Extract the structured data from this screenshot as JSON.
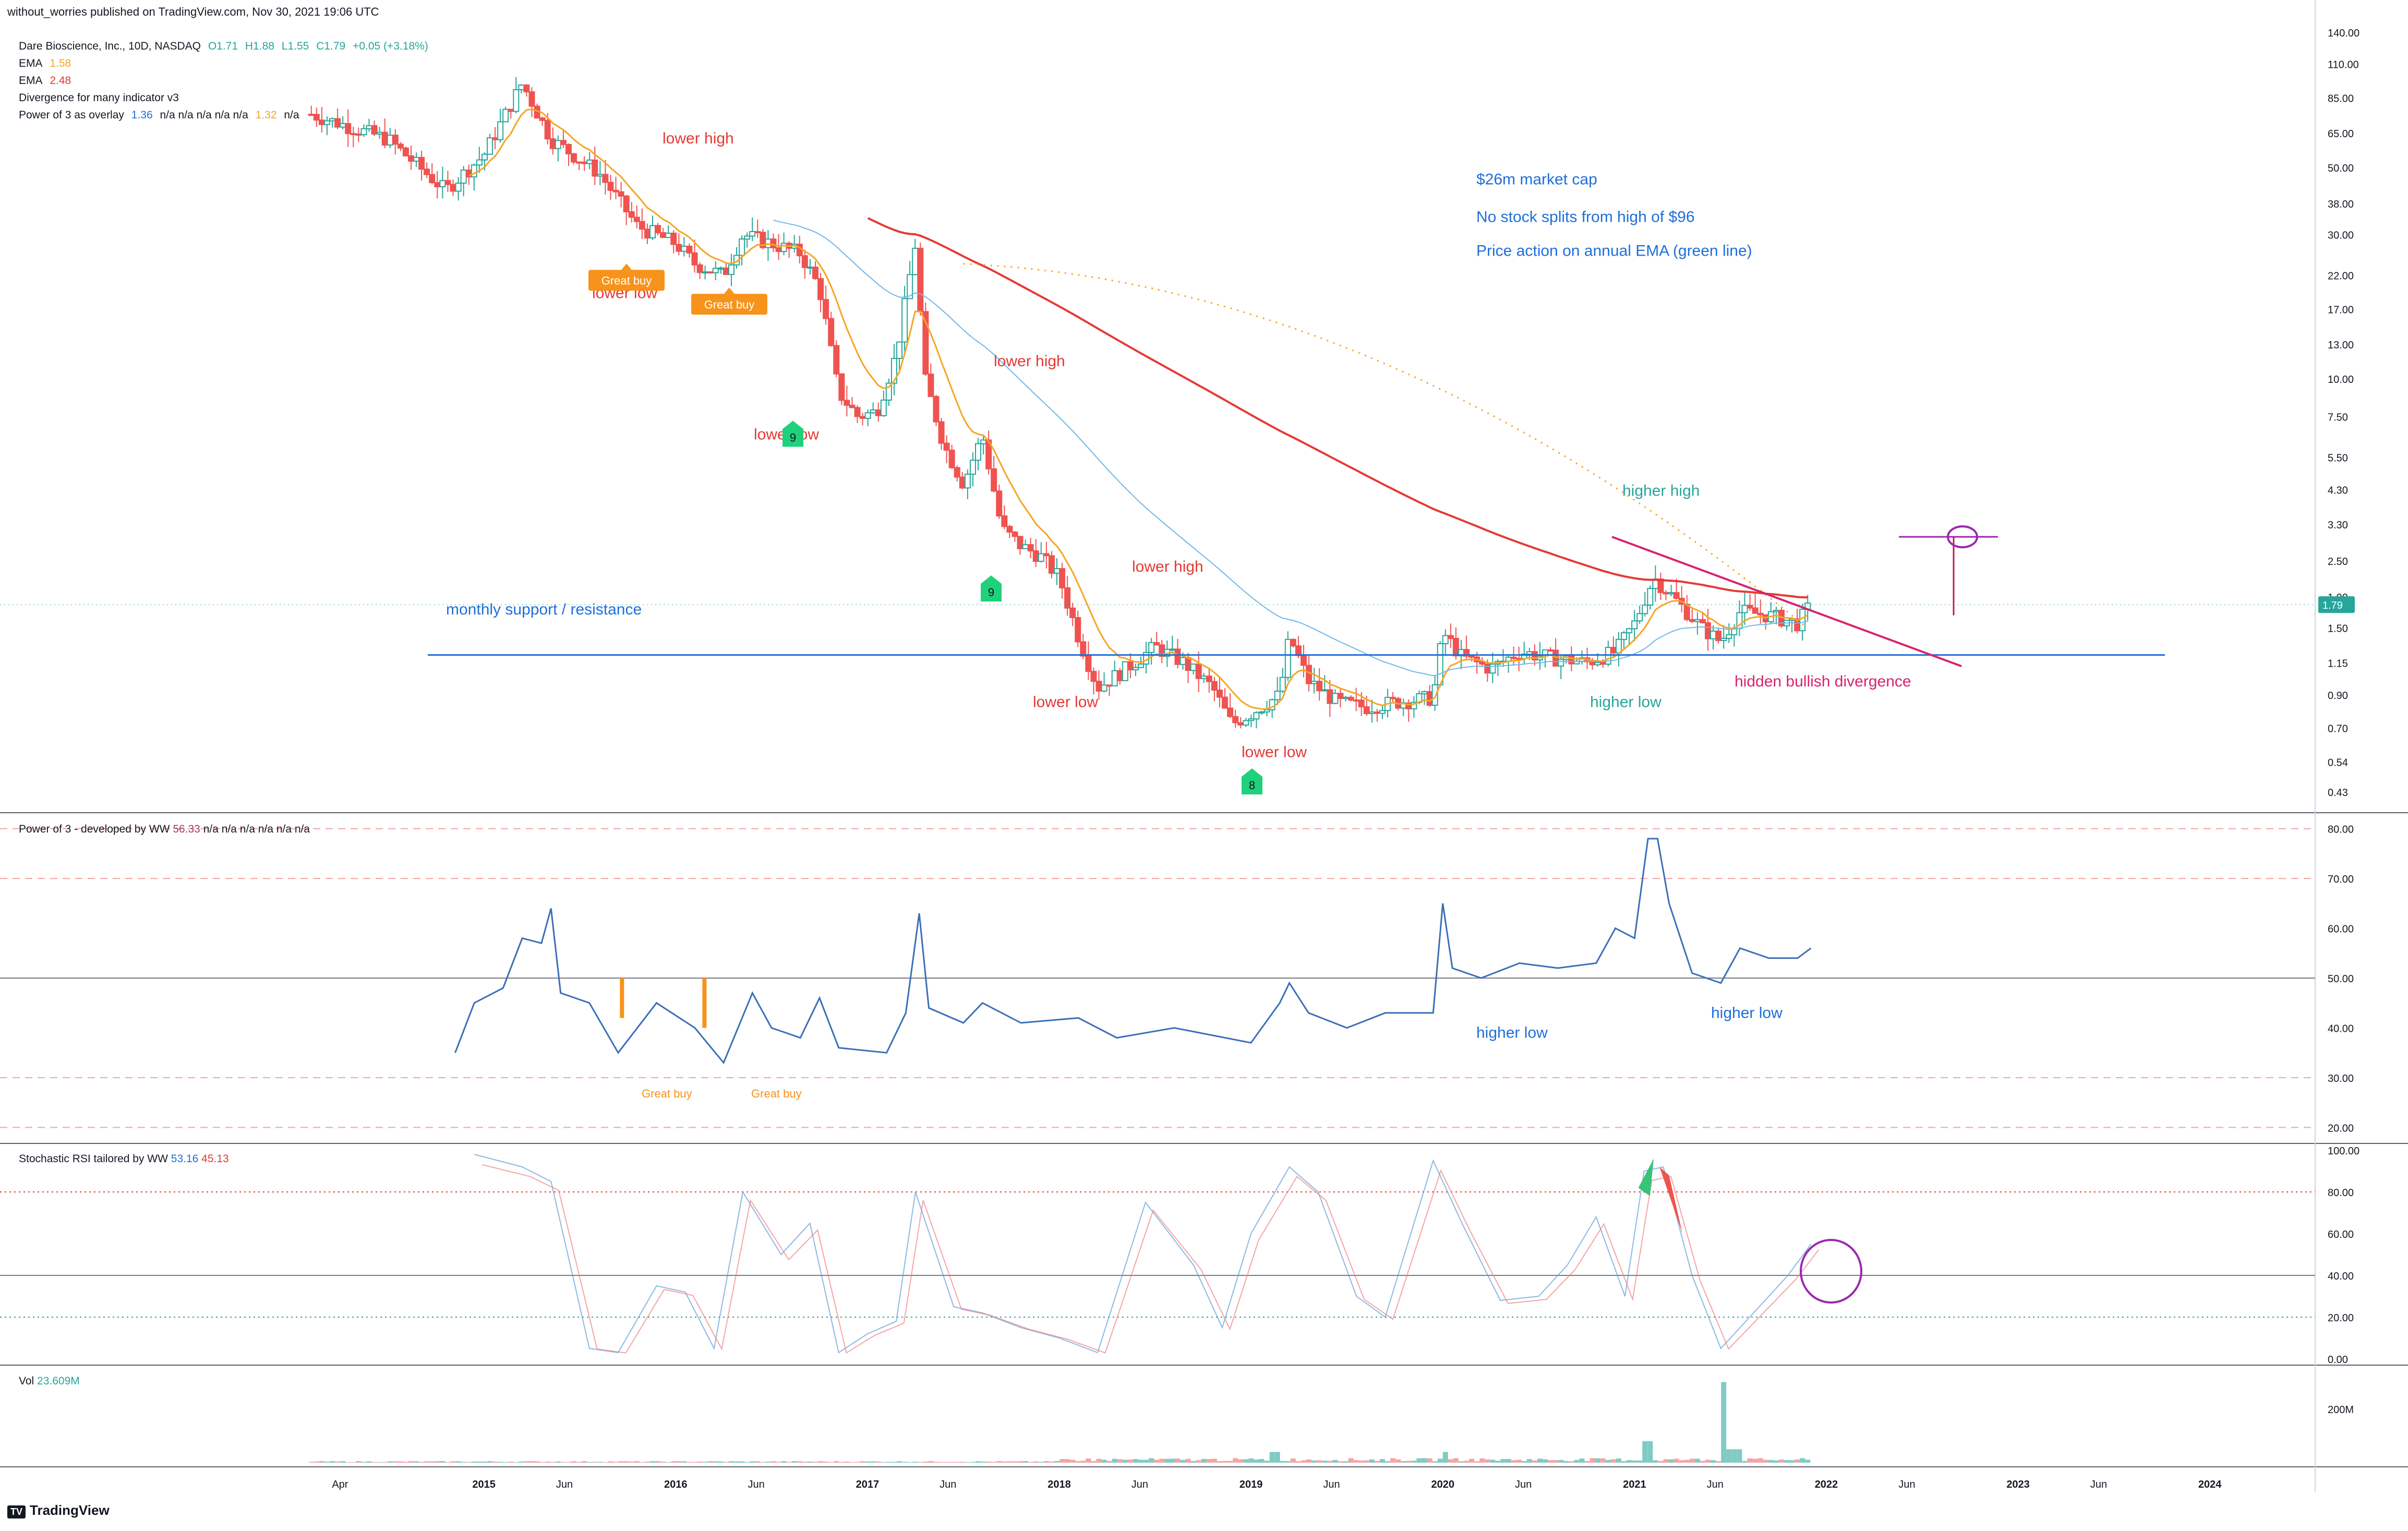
{
  "header": {
    "publisher_line": "without_worries published on TradingView.com, Nov 30, 2021 19:06 UTC"
  },
  "legend": {
    "symbol": "Dare Bioscience, Inc., 10D, NASDAQ",
    "o": "O1.71",
    "h": "H1.88",
    "l": "L1.55",
    "c": "C1.79",
    "chg": "+0.05 (+3.18%)",
    "ema1_label": "EMA",
    "ema1_value": "1.58",
    "ema2_label": "EMA",
    "ema2_value": "2.48",
    "divergence_label": "Divergence for many indicator v3",
    "power_overlay_label": "Power of 3 as overlay",
    "power_overlay_v1": "1.36",
    "power_overlay_na": "n/a  n/a  n/a  n/a  n/a",
    "power_overlay_v2": "1.32",
    "power_overlay_na2": "n/a"
  },
  "panes": {
    "power3_title": "Power of 3 - developed by WW",
    "power3_value": "56.33",
    "power3_na": "n/a  n/a  n/a  n/a  n/a  n/a",
    "stoch_title": "Stochastic RSI tailored by WW",
    "stoch_k": "53.16",
    "stoch_d": "45.13",
    "vol_title": "Vol",
    "vol_value": "23.609M"
  },
  "footer": {
    "brand": "TradingView",
    "mark": "TV"
  },
  "colors": {
    "up": "#26a69a",
    "down": "#ef5350",
    "ema_fast": "#f5a623",
    "ema_slow": "#e53935",
    "ema_annual": "#6fb8e8",
    "support": "#1e6fd9",
    "annot_red": "#e53935",
    "annot_blue": "#1e6fd9",
    "annot_teal": "#26a69a",
    "annot_pink": "#d6246e",
    "orange_label": "#f7931a",
    "green_marker": "#1fd17a",
    "purple": "#9c27b0"
  },
  "chart_data": [
    {
      "type": "candlestick",
      "title": "Dare Bioscience, Inc., 10D, NASDAQ",
      "scale": "log",
      "x_tick_labels": [
        "Apr",
        "2015",
        "Jun",
        "2016",
        "Jun",
        "2017",
        "Jun",
        "2018",
        "Jun",
        "2019",
        "Jun",
        "2020",
        "Jun",
        "2021",
        "Jun",
        "2022",
        "Jun",
        "2023",
        "Jun",
        "2024"
      ],
      "y_tick_labels": [
        "140.00",
        "110.00",
        "85.00",
        "65.00",
        "50.00",
        "38.00",
        "30.00",
        "22.00",
        "17.00",
        "13.00",
        "10.00",
        "7.50",
        "5.50",
        "4.30",
        "3.30",
        "2.50",
        "1.90",
        "1.50",
        "1.15",
        "0.90",
        "0.70",
        "0.54",
        "0.43"
      ],
      "last_price_label": "1.79",
      "support_level": 1.22,
      "annotations": [
        {
          "text": "lower high",
          "color": "red"
        },
        {
          "text": "lower low",
          "color": "red"
        },
        {
          "text": "lower high",
          "color": "red"
        },
        {
          "text": "lower low",
          "color": "red"
        },
        {
          "text": "lower high",
          "color": "red"
        },
        {
          "text": "lower low",
          "color": "red"
        },
        {
          "text": "lower low",
          "color": "red"
        },
        {
          "text": "higher high",
          "color": "teal"
        },
        {
          "text": "higher low",
          "color": "teal"
        },
        {
          "text": "hidden bullish divergence",
          "color": "pink"
        },
        {
          "text": "monthly support / resistance",
          "color": "blue"
        },
        {
          "text": "$26m market cap",
          "color": "blue"
        },
        {
          "text": "No stock splits from high of $96",
          "color": "blue"
        },
        {
          "text": "Price action on annual EMA (green line)",
          "color": "blue"
        }
      ],
      "buy_labels": [
        "Great buy",
        "Great buy"
      ],
      "count_markers": [
        "9",
        "9",
        "8"
      ]
    },
    {
      "type": "line",
      "title": "Power of 3 - developed by WW",
      "y_tick_labels": [
        "80.00",
        "70.00",
        "60.00",
        "50.00",
        "40.00",
        "30.00",
        "20.00"
      ],
      "ylim": [
        17,
        83
      ],
      "annotations": [
        "Great buy",
        "Great buy",
        "higher low",
        "higher low"
      ]
    },
    {
      "type": "line",
      "title": "Stochastic RSI tailored by WW",
      "y_tick_labels": [
        "100.00",
        "80.00",
        "60.00",
        "40.00",
        "20.00",
        "0.00"
      ],
      "ylim": [
        0,
        100
      ],
      "series": [
        {
          "name": "53.16"
        },
        {
          "name": "45.13"
        }
      ]
    },
    {
      "type": "bar",
      "title": "Vol",
      "y_tick_labels": [
        "200M"
      ],
      "last_value": "23.609M"
    }
  ]
}
